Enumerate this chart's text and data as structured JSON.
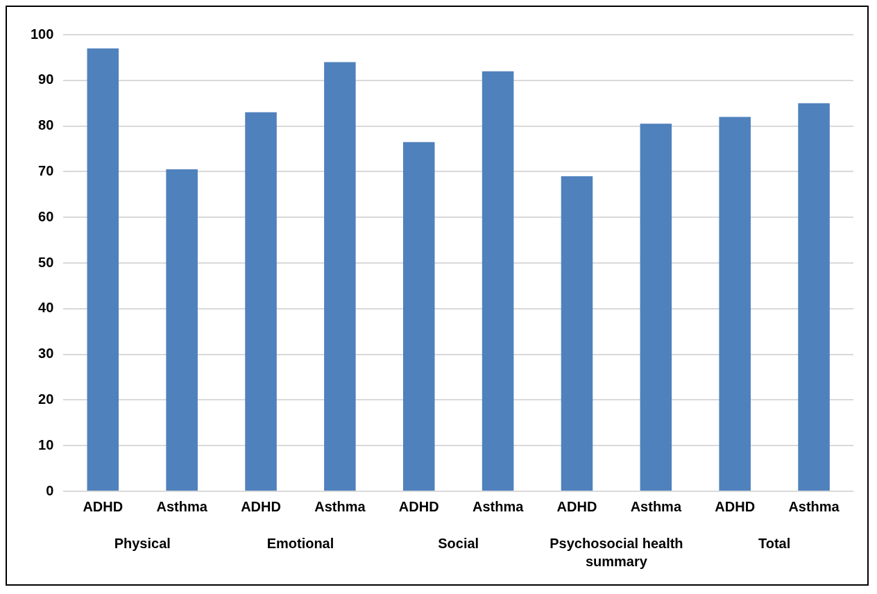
{
  "chart_data": {
    "type": "bar",
    "categories": [
      "ADHD",
      "Asthma",
      "ADHD",
      "Asthma",
      "ADHD",
      "Asthma",
      "ADHD",
      "Asthma",
      "ADHD",
      "Asthma"
    ],
    "values": [
      97,
      70.5,
      83,
      94,
      76.5,
      92,
      69,
      80.5,
      82,
      85
    ],
    "color": "#4f81bd",
    "ylim": [
      0,
      100
    ],
    "yticks": [
      0,
      10,
      20,
      30,
      40,
      50,
      60,
      70,
      80,
      90,
      100
    ],
    "grid": "y",
    "annotations": [
      "Physical",
      "Emotional",
      "Social",
      "Psychosocial health summary",
      "Total"
    ]
  }
}
